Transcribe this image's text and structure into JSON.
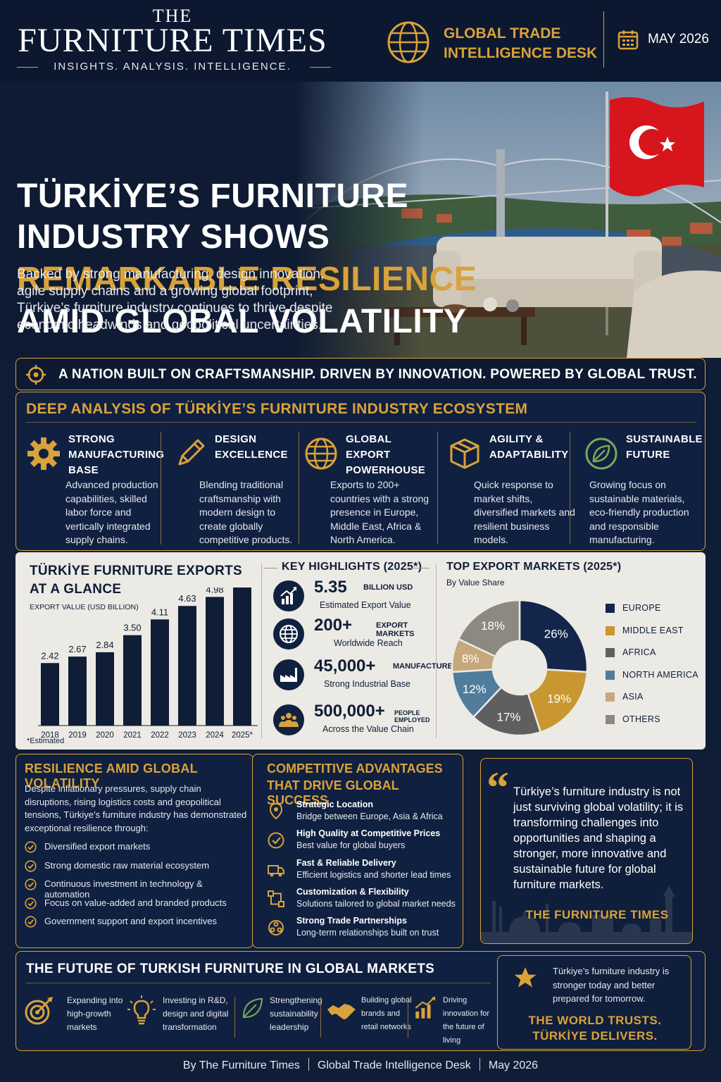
{
  "header": {
    "masthead_the": "THE",
    "masthead_name": "FURNITURE TIMES",
    "masthead_tagline": "INSIGHTS. ANALYSIS. INTELLIGENCE.",
    "desk_line1": "GLOBAL TRADE",
    "desk_line2": "INTELLIGENCE DESK",
    "issue_date": "MAY 2026",
    "icons": [
      "globe-icon",
      "calendar-icon"
    ]
  },
  "hero": {
    "headline_line1": "TÜRKİYE’S FURNITURE",
    "headline_line2": "INDUSTRY SHOWS",
    "headline_line3": "REMARKABLE RESILIENCE",
    "headline_line4": "AMID GLOBAL VOLATILITY",
    "subtitle": "Backed by strong manufacturing, design innovation, agile supply chains and a growing global footprint, Türkiye’s furniture industry continues to thrive despite economic headwinds and geopolitical uncertainties."
  },
  "tagline": "A NATION BUILT ON CRAFTSMANSHIP. DRIVEN BY INNOVATION. POWERED BY GLOBAL TRUST.",
  "ecosystem": {
    "title": "DEEP ANALYSIS OF TÜRKİYE’S FURNITURE INDUSTRY ECOSYSTEM",
    "pillars": [
      {
        "title": "STRONG MANUFACTURING BASE",
        "text": "Advanced production capabilities, skilled labor force and vertically integrated supply chains.",
        "icon": "gear-icon"
      },
      {
        "title": "DESIGN EXCELLENCE",
        "text": "Blending traditional craftsmanship with modern design to create globally competitive products.",
        "icon": "pencil-icon"
      },
      {
        "title": "GLOBAL EXPORT POWERHOUSE",
        "text": "Exports to 200+ countries with a strong presence in Europe, Middle East, Africa & North America.",
        "icon": "globe-icon"
      },
      {
        "title": "AGILITY & ADAPTABILITY",
        "text": "Quick response to market shifts, diversified markets and resilient business models.",
        "icon": "box-icon"
      },
      {
        "title": "SUSTAINABLE FUTURE",
        "text": "Growing focus on sustainable materials, eco-friendly production and responsible manufacturing.",
        "icon": "leaf-icon"
      }
    ]
  },
  "exports": {
    "title_line1": "TÜRKİYE FURNITURE EXPORTS",
    "title_line2": "AT A GLANCE",
    "ylabel": "EXPORT VALUE (USD BILLION)",
    "note": "*Estimated"
  },
  "highlights": {
    "title": "KEY HIGHLIGHTS (2025*)",
    "items": [
      {
        "value": "5.35",
        "unit": "BILLION USD",
        "sub": "Estimated Export Value",
        "icon": "growth-chart-icon"
      },
      {
        "value": "200+",
        "unit": "EXPORT MARKETS",
        "sub": "Worldwide Reach",
        "icon": "globe-icon"
      },
      {
        "value": "45,000+",
        "unit": "MANUFACTURERS",
        "sub": "Strong Industrial Base",
        "icon": "factory-icon"
      },
      {
        "value": "500,000+",
        "unit": "PEOPLE EMPLOYED",
        "sub": "Across the Value Chain",
        "icon": "people-icon"
      }
    ]
  },
  "markets": {
    "title": "TOP EXPORT MARKETS (2025*)",
    "subtitle": "By Value Share"
  },
  "resilience": {
    "title": "RESILIENCE AMID GLOBAL VOLATILITY",
    "intro": "Despite inflationary pressures, supply chain disruptions, rising logistics costs and geopolitical tensions, Türkiye’s furniture industry has demonstrated exceptional resilience through:",
    "items": [
      "Diversified export markets",
      "Strong domestic raw material ecosystem",
      "Continuous investment in technology & automation",
      "Focus on value-added and branded products",
      "Government support and export incentives"
    ]
  },
  "advantages": {
    "title_line1": "COMPETITIVE ADVANTAGES",
    "title_line2": "THAT DRIVE GLOBAL SUCCESS",
    "items": [
      {
        "head": "Strategic Location",
        "sub": "Bridge between Europe, Asia & Africa",
        "icon": "location-icon"
      },
      {
        "head": "High Quality at Competitive Prices",
        "sub": "Best value for global buyers",
        "icon": "quality-check-icon"
      },
      {
        "head": "Fast & Reliable Delivery",
        "sub": "Efficient logistics and shorter lead times",
        "icon": "truck-icon"
      },
      {
        "head": "Customization & Flexibility",
        "sub": "Solutions tailored to global market needs",
        "icon": "customization-icon"
      },
      {
        "head": "Strong Trade Partnerships",
        "sub": "Long-term relationships built on trust",
        "icon": "partnership-icon"
      }
    ]
  },
  "quote": {
    "text": "Türkiye’s furniture industry is not just surviving global volatility; it is transforming challenges into opportunities and shaping a stronger, more innovative and sustainable future for global furniture markets.",
    "source": "THE FURNITURE TIMES"
  },
  "future": {
    "title": "THE FUTURE OF TURKISH FURNITURE IN GLOBAL MARKETS",
    "items": [
      {
        "text": "Expanding into high-growth markets",
        "icon": "target-icon"
      },
      {
        "text": "Investing in R&D, design and digital transformation",
        "icon": "lightbulb-icon"
      },
      {
        "text": "Strengthening sustainability leadership",
        "icon": "leaf-icon"
      },
      {
        "text": "Building global brands and retail networks",
        "icon": "handshake-icon"
      },
      {
        "text": "Driving innovation for the future of living",
        "icon": "growth-chart-icon"
      }
    ]
  },
  "callout": {
    "text": "Türkiye’s furniture industry is stronger today and better prepared for tomorrow.",
    "bold_line1": "THE WORLD TRUSTS.",
    "bold_line2": "TÜRKİYE DELIVERS.",
    "icon": "star-icon"
  },
  "footer": {
    "part1": "By The Furniture Times",
    "part2": "Global Trade Intelligence Desk",
    "part3": "May 2026"
  },
  "colors": {
    "navy": "#0f1d36",
    "gold": "#d9a23a",
    "panel_light": "#eceae5"
  },
  "chart_data": [
    {
      "type": "bar",
      "categories": [
        "2018",
        "2019",
        "2020",
        "2021",
        "2022",
        "2023",
        "2024",
        "2025*"
      ],
      "values": [
        2.42,
        2.67,
        2.84,
        3.5,
        4.11,
        4.63,
        4.98,
        5.35
      ],
      "title": "TÜRKİYE FURNITURE EXPORTS AT A GLANCE",
      "ylabel": "EXPORT VALUE (USD BILLION)",
      "ylim": [
        0,
        6
      ],
      "grid": false,
      "color": "#0f1d36"
    },
    {
      "type": "pie",
      "title": "TOP EXPORT MARKETS (2025*)",
      "subtitle": "By Value Share",
      "labels": [
        "EUROPE",
        "MIDDLE EAST",
        "AFRICA",
        "NORTH AMERICA",
        "ASIA",
        "OTHERS"
      ],
      "values": [
        26,
        19,
        17,
        12,
        8,
        18
      ],
      "colors": [
        "#13254a",
        "#c9972f",
        "#5f5f60",
        "#4f7d9b",
        "#c7a87a",
        "#8d8880"
      ],
      "donut": true,
      "legend": "right"
    }
  ]
}
